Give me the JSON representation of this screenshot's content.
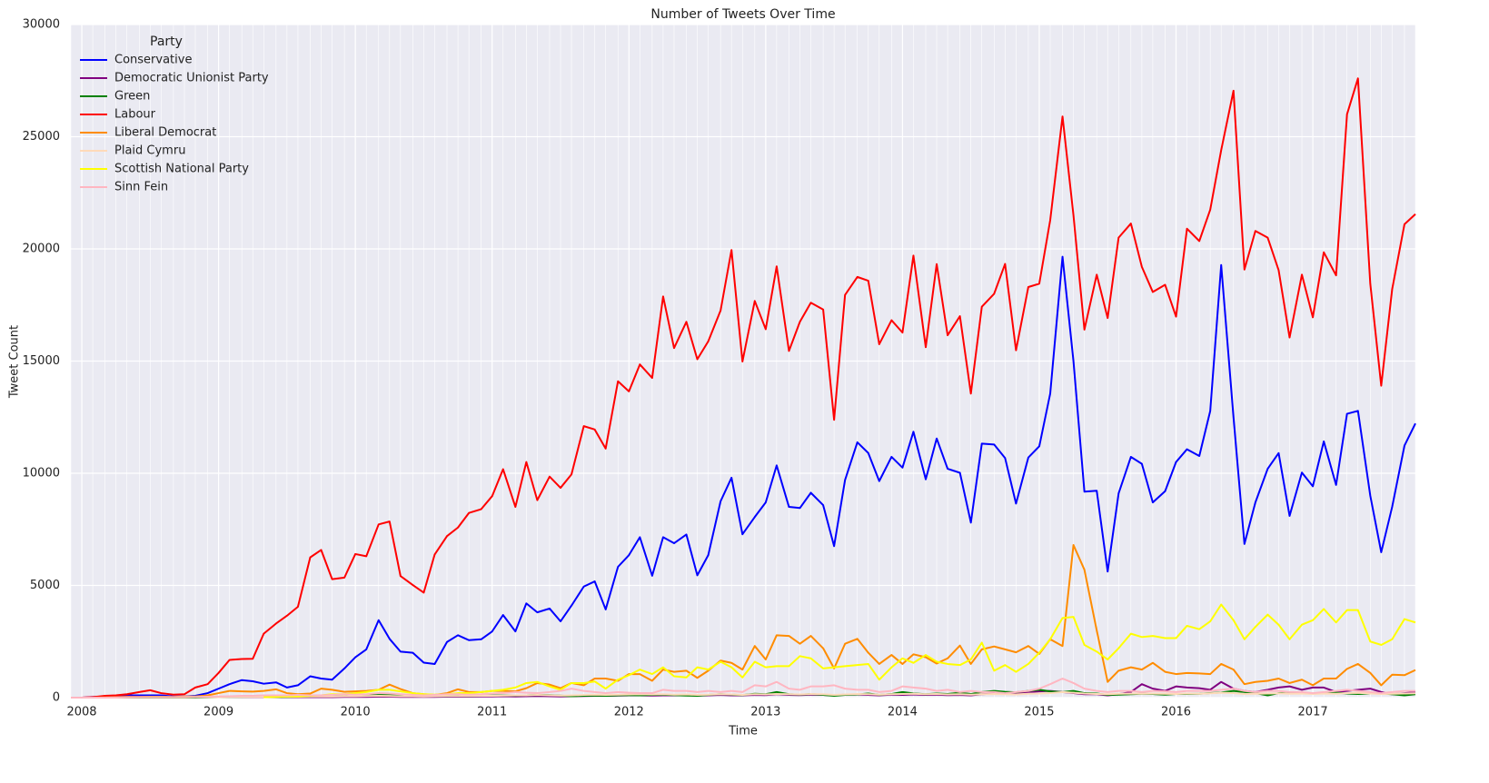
{
  "chart_data": {
    "type": "line",
    "title": "Number of Tweets Over Time",
    "xlabel": "Time",
    "ylabel": "Tweet Count",
    "legend_title": "Party",
    "legend": "upper left",
    "grid": true,
    "x": [
      2007.92,
      2008,
      2008.08,
      2008.17,
      2008.25,
      2008.33,
      2008.42,
      2008.5,
      2008.58,
      2008.67,
      2008.75,
      2008.83,
      2008.92,
      2009,
      2009.08,
      2009.17,
      2009.25,
      2009.33,
      2009.42,
      2009.5,
      2009.58,
      2009.67,
      2009.75,
      2009.83,
      2009.92,
      2010,
      2010.08,
      2010.17,
      2010.25,
      2010.33,
      2010.42,
      2010.5,
      2010.58,
      2010.67,
      2010.75,
      2010.83,
      2010.92,
      2011,
      2011.08,
      2011.17,
      2011.25,
      2011.33,
      2011.42,
      2011.5,
      2011.58,
      2011.67,
      2011.75,
      2011.83,
      2011.92,
      2012,
      2012.08,
      2012.17,
      2012.25,
      2012.33,
      2012.42,
      2012.5,
      2012.58,
      2012.67,
      2012.75,
      2012.83,
      2012.92,
      2013,
      2013.08,
      2013.17,
      2013.25,
      2013.33,
      2013.42,
      2013.5,
      2013.58,
      2013.67,
      2013.75,
      2013.83,
      2013.92,
      2014,
      2014.08,
      2014.17,
      2014.25,
      2014.33,
      2014.42,
      2014.5,
      2014.58,
      2014.67,
      2014.75,
      2014.83,
      2014.92,
      2015,
      2015.08,
      2015.17,
      2015.25,
      2015.33,
      2015.42,
      2015.5,
      2015.58,
      2015.67,
      2015.75,
      2015.83,
      2015.92,
      2016,
      2016.08,
      2016.17,
      2016.25,
      2016.33,
      2016.42,
      2016.5,
      2016.58,
      2016.67,
      2016.75,
      2016.83,
      2016.92,
      2017,
      2017.08,
      2017.17,
      2017.25,
      2017.33,
      2017.42,
      2017.5,
      2017.58,
      2017.67,
      2017.75
    ],
    "xlim": [
      2007.92,
      2017.75
    ],
    "xticks": [
      2008,
      2009,
      2010,
      2011,
      2012,
      2013,
      2014,
      2015,
      2016,
      2017
    ],
    "ylim": [
      0,
      30000
    ],
    "yticks": [
      0,
      5000,
      10000,
      15000,
      20000,
      25000,
      30000
    ],
    "series": [
      {
        "name": "Conservative",
        "color": "#0000ff",
        "values": [
          0,
          0,
          0,
          30,
          50,
          100,
          100,
          100,
          100,
          50,
          50,
          80,
          200,
          400,
          600,
          780,
          730,
          620,
          680,
          450,
          550,
          950,
          850,
          800,
          1300,
          1800,
          2150,
          3450,
          2620,
          2050,
          2000,
          1560,
          1500,
          2480,
          2780,
          2560,
          2600,
          2950,
          3680,
          2950,
          4200,
          3800,
          3970,
          3400,
          4100,
          4950,
          5180,
          3930,
          5830,
          6350,
          7150,
          5430,
          7150,
          6880,
          7270,
          5450,
          6350,
          8750,
          9800,
          7280,
          8050,
          8700,
          10350,
          8500,
          8450,
          9130,
          8580,
          6750,
          9700,
          11380,
          10900,
          9650,
          10730,
          10250,
          11850,
          9730,
          11550,
          10200,
          10020,
          7800,
          11320,
          11280,
          10680,
          8650,
          10700,
          11200,
          13550,
          19650,
          15000,
          9180,
          9220,
          5620,
          9100,
          10730,
          10420,
          8700,
          9200,
          10500,
          11070,
          10770,
          12780,
          19280,
          12500,
          6850,
          8700,
          10200,
          10900,
          8100,
          10030,
          9420,
          11420,
          9480,
          12650,
          12780,
          9000,
          6480,
          8500,
          11230,
          12220
        ]
      },
      {
        "name": "Democratic Unionist Party",
        "color": "#800080",
        "values": [
          0,
          0,
          30,
          50,
          50,
          50,
          40,
          30,
          20,
          20,
          20,
          20,
          30,
          30,
          30,
          20,
          20,
          20,
          20,
          20,
          20,
          20,
          20,
          20,
          30,
          30,
          30,
          40,
          40,
          30,
          30,
          30,
          30,
          40,
          40,
          40,
          50,
          50,
          60,
          50,
          60,
          70,
          60,
          50,
          60,
          70,
          80,
          80,
          90,
          100,
          100,
          90,
          100,
          100,
          110,
          90,
          100,
          120,
          100,
          100,
          120,
          110,
          150,
          120,
          110,
          130,
          120,
          100,
          130,
          140,
          120,
          100,
          130,
          120,
          140,
          120,
          130,
          110,
          120,
          100,
          150,
          180,
          160,
          200,
          250,
          280,
          300,
          250,
          200,
          150,
          150,
          100,
          150,
          250,
          600,
          400,
          300,
          500,
          450,
          420,
          350,
          700,
          400,
          300,
          250,
          350,
          450,
          500,
          350,
          450,
          450,
          250,
          300,
          350,
          400,
          250,
          150,
          200,
          250
        ]
      },
      {
        "name": "Green",
        "color": "#008000",
        "values": [
          0,
          0,
          0,
          0,
          0,
          0,
          0,
          0,
          0,
          0,
          0,
          0,
          10,
          20,
          30,
          30,
          40,
          40,
          30,
          30,
          40,
          50,
          60,
          60,
          80,
          100,
          90,
          120,
          150,
          100,
          80,
          60,
          60,
          70,
          80,
          70,
          80,
          90,
          100,
          90,
          100,
          120,
          110,
          90,
          60,
          80,
          90,
          80,
          100,
          110,
          100,
          120,
          130,
          110,
          90,
          80,
          120,
          150,
          130,
          110,
          170,
          150,
          250,
          150,
          130,
          160,
          120,
          80,
          120,
          140,
          180,
          120,
          160,
          250,
          190,
          150,
          180,
          160,
          220,
          160,
          250,
          300,
          260,
          240,
          300,
          350,
          280,
          250,
          300,
          200,
          180,
          120,
          130,
          150,
          170,
          160,
          130,
          160,
          160,
          170,
          200,
          230,
          300,
          250,
          200,
          100,
          200,
          220,
          200,
          180,
          200,
          220,
          180,
          160,
          180,
          180,
          150,
          100,
          150
        ]
      },
      {
        "name": "Labour",
        "color": "#ff0000",
        "values": [
          0,
          0,
          20,
          80,
          100,
          150,
          250,
          330,
          200,
          130,
          150,
          450,
          600,
          1100,
          1680,
          1720,
          1730,
          2850,
          3300,
          3650,
          4050,
          6250,
          6580,
          5280,
          5350,
          6400,
          6300,
          7720,
          7850,
          5420,
          5020,
          4680,
          6380,
          7200,
          7580,
          8230,
          8400,
          8980,
          10180,
          8500,
          10500,
          8800,
          9850,
          9350,
          9950,
          12100,
          11950,
          11100,
          14100,
          13650,
          14850,
          14250,
          17880,
          15580,
          16750,
          15080,
          15880,
          17250,
          19950,
          14980,
          17680,
          16420,
          19220,
          15450,
          16750,
          17600,
          17300,
          12380,
          17950,
          18750,
          18580,
          15750,
          16820,
          16270,
          19700,
          15620,
          19320,
          16150,
          17000,
          13550,
          17420,
          18000,
          19330,
          15480,
          18300,
          18450,
          21280,
          25900,
          21500,
          16400,
          18850,
          16920,
          20500,
          21130,
          19200,
          18080,
          18400,
          16980,
          20900,
          20350,
          21750,
          24400,
          27050,
          19080,
          20800,
          20500,
          19050,
          16050,
          18850,
          16950,
          19850,
          18820,
          26000,
          27600,
          18450,
          13900,
          18200,
          21100,
          21550
        ]
      },
      {
        "name": "Liberal Democrat",
        "color": "#ff8c00",
        "values": [
          0,
          0,
          0,
          10,
          20,
          30,
          30,
          40,
          40,
          30,
          50,
          50,
          100,
          200,
          300,
          280,
          270,
          300,
          370,
          200,
          150,
          180,
          400,
          350,
          260,
          280,
          300,
          350,
          580,
          380,
          200,
          150,
          120,
          200,
          370,
          250,
          250,
          300,
          300,
          280,
          420,
          650,
          580,
          420,
          650,
          550,
          850,
          850,
          750,
          1050,
          1050,
          750,
          1250,
          1150,
          1200,
          880,
          1200,
          1650,
          1550,
          1250,
          2300,
          1700,
          2780,
          2750,
          2400,
          2750,
          2200,
          1300,
          2400,
          2620,
          2000,
          1500,
          1900,
          1500,
          1930,
          1800,
          1520,
          1750,
          2320,
          1500,
          2150,
          2280,
          2150,
          2020,
          2300,
          1950,
          2600,
          2300,
          6800,
          5700,
          3000,
          700,
          1200,
          1350,
          1250,
          1550,
          1150,
          1050,
          1100,
          1080,
          1050,
          1500,
          1250,
          600,
          700,
          750,
          850,
          650,
          800,
          550,
          850,
          850,
          1280,
          1500,
          1100,
          550,
          1020,
          1000,
          1230
        ]
      },
      {
        "name": "Plaid Cymru",
        "color": "#ffdab9",
        "values": [
          0,
          0,
          0,
          0,
          0,
          10,
          10,
          10,
          10,
          10,
          10,
          20,
          20,
          20,
          30,
          30,
          30,
          30,
          40,
          40,
          40,
          50,
          50,
          50,
          60,
          60,
          70,
          80,
          70,
          60,
          60,
          50,
          60,
          70,
          70,
          70,
          80,
          80,
          90,
          100,
          100,
          120,
          100,
          90,
          100,
          120,
          130,
          120,
          130,
          140,
          150,
          140,
          150,
          130,
          140,
          120,
          130,
          150,
          140,
          120,
          150,
          140,
          160,
          150,
          140,
          160,
          150,
          120,
          140,
          160,
          150,
          130,
          150,
          160,
          170,
          150,
          160,
          140,
          150,
          130,
          150,
          160,
          150,
          140,
          170,
          180,
          200,
          250,
          220,
          180,
          160,
          150,
          170,
          180,
          170,
          180,
          170,
          160,
          180,
          170,
          190,
          220,
          200,
          160,
          170,
          180,
          190,
          170,
          180,
          160,
          180,
          170,
          200,
          210,
          180,
          160,
          170,
          180,
          190
        ]
      },
      {
        "name": "Scottish National Party",
        "color": "#ffff00",
        "values": [
          null,
          null,
          null,
          null,
          null,
          null,
          null,
          null,
          null,
          null,
          null,
          null,
          null,
          null,
          null,
          null,
          null,
          20,
          30,
          50,
          50,
          80,
          100,
          150,
          150,
          200,
          250,
          350,
          350,
          280,
          200,
          150,
          130,
          150,
          200,
          200,
          250,
          300,
          350,
          450,
          650,
          700,
          500,
          350,
          650,
          650,
          720,
          400,
          800,
          1000,
          1250,
          1050,
          1350,
          950,
          900,
          1350,
          1250,
          1600,
          1350,
          900,
          1600,
          1350,
          1400,
          1400,
          1850,
          1750,
          1300,
          1350,
          1400,
          1450,
          1500,
          800,
          1350,
          1750,
          1550,
          1900,
          1600,
          1500,
          1450,
          1700,
          2450,
          1200,
          1450,
          1150,
          1500,
          2000,
          2600,
          3550,
          3600,
          2350,
          2050,
          1700,
          2200,
          2850,
          2700,
          2750,
          2650,
          2650,
          3200,
          3050,
          3400,
          4150,
          3450,
          2600,
          3150,
          3700,
          3250,
          2600,
          3250,
          3450,
          3950,
          3350,
          3900,
          3900,
          2500,
          2350,
          2600,
          3500,
          3350
        ]
      },
      {
        "name": "Sinn Fein",
        "color": "#ffb6c1",
        "values": [
          0,
          0,
          0,
          0,
          10,
          10,
          20,
          20,
          20,
          20,
          30,
          30,
          40,
          50,
          60,
          80,
          80,
          100,
          100,
          100,
          120,
          100,
          100,
          120,
          150,
          130,
          150,
          200,
          180,
          150,
          120,
          100,
          120,
          150,
          150,
          130,
          150,
          180,
          200,
          250,
          220,
          200,
          250,
          300,
          400,
          300,
          250,
          200,
          250,
          220,
          200,
          200,
          350,
          300,
          300,
          250,
          300,
          250,
          300,
          250,
          550,
          500,
          700,
          400,
          350,
          500,
          500,
          550,
          400,
          350,
          350,
          250,
          300,
          500,
          450,
          400,
          300,
          350,
          250,
          300,
          250,
          250,
          200,
          250,
          300,
          400,
          600,
          850,
          650,
          400,
          300,
          250,
          300,
          300,
          250,
          300,
          280,
          250,
          300,
          300,
          300,
          350,
          400,
          300,
          250,
          300,
          300,
          250,
          250,
          200,
          250,
          300,
          350,
          300,
          250,
          200,
          250,
          300,
          300
        ]
      }
    ]
  }
}
